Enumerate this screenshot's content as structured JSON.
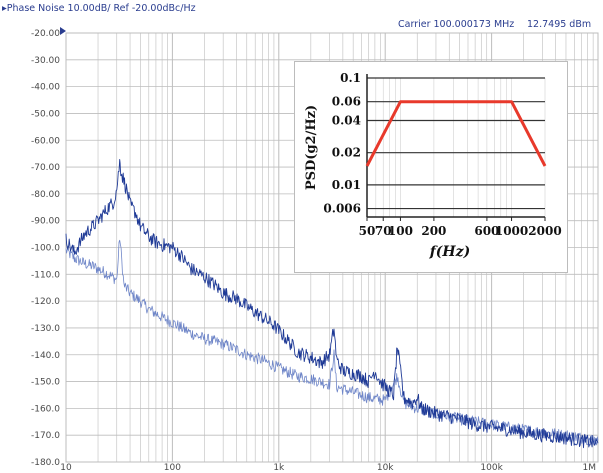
{
  "header": {
    "title": "▸Phase Noise 10.00dB/ Ref -20.00dBc/Hz",
    "carrier": "Carrier 100.000173 MHz",
    "power": "12.7495 dBm"
  },
  "colors": {
    "trace_dark": "#1f3a96",
    "trace_light": "#6f86c8",
    "grid": "#bdbdbd",
    "axis_text": "#4a4a4a",
    "inset_line": "#e8392b"
  },
  "chart_data": [
    {
      "type": "line",
      "title": "Phase Noise 10.00dB/ Ref -20.00dBc/Hz",
      "xscale": "log",
      "xlim": [
        10,
        1000000
      ],
      "ylim": [
        -180,
        -20
      ],
      "x_tick_values": [
        10,
        100,
        1000,
        10000,
        100000,
        1000000
      ],
      "x_tick_labels": [
        "10",
        "100",
        "1k",
        "10k",
        "100k",
        "1M"
      ],
      "y_tick_labels": [
        "-20.00",
        "-30.00",
        "-40.00",
        "-50.00",
        "-60.00",
        "-70.00",
        "-80.00",
        "-90.00",
        "-100.0",
        "-110.0",
        "-120.0",
        "-130.0",
        "-140.0",
        "-150.0",
        "-160.0",
        "-170.0",
        "-180.0"
      ],
      "grid": true,
      "series": [
        {
          "x": [
            10,
            12,
            15,
            18,
            20,
            25,
            28,
            30,
            32,
            33,
            35,
            38,
            40,
            45,
            50,
            60,
            70,
            80,
            100,
            120,
            150,
            200,
            250,
            300,
            400,
            500,
            700,
            900,
            1000,
            1300,
            1500,
            2000,
            2500,
            3000,
            3300,
            3500,
            4000,
            5000,
            6000,
            7000,
            8000,
            9000,
            10000,
            12000,
            13000,
            15000,
            18000,
            20000,
            22000,
            30000,
            40000,
            50000,
            70000,
            100000,
            150000,
            200000,
            300000,
            500000,
            700000,
            1000000
          ],
          "y": [
            -97,
            -102,
            -95,
            -92,
            -90,
            -85,
            -83,
            -78,
            -68,
            -72,
            -75,
            -80,
            -84,
            -87,
            -92,
            -96,
            -98,
            -99,
            -100,
            -103,
            -108,
            -111,
            -114,
            -117,
            -119,
            -122,
            -126,
            -129,
            -131,
            -136,
            -139,
            -141,
            -143,
            -140,
            -130,
            -142,
            -146,
            -147,
            -148,
            -150,
            -146,
            -150,
            -152,
            -155,
            -137,
            -156,
            -158,
            -156,
            -160,
            -162,
            -163,
            -164,
            -166,
            -167,
            -168,
            -169,
            -170,
            -171,
            -172,
            -173
          ]
        },
        {
          "x": [
            10,
            12,
            15,
            18,
            20,
            25,
            30,
            32,
            35,
            40,
            50,
            60,
            80,
            100,
            150,
            200,
            300,
            400,
            500,
            700,
            900,
            1000,
            1500,
            2000,
            3000,
            3300,
            3500,
            5000,
            7000,
            10000,
            13000,
            15000,
            20000,
            30000,
            50000,
            70000,
            100000,
            200000,
            500000,
            1000000
          ],
          "y": [
            -101,
            -104,
            -106,
            -107,
            -108,
            -110,
            -112,
            -96,
            -114,
            -117,
            -120,
            -123,
            -126,
            -128,
            -132,
            -134,
            -136,
            -138,
            -140,
            -142,
            -144,
            -145,
            -148,
            -149,
            -151,
            -140,
            -152,
            -154,
            -156,
            -157,
            -148,
            -158,
            -160,
            -162,
            -164,
            -165,
            -166,
            -168,
            -170,
            -172
          ]
        }
      ]
    },
    {
      "type": "line",
      "xscale": "log",
      "yscale": "log",
      "xlabel": "f(Hz)",
      "ylabel": "PSD(g2/Hz)",
      "xlim": [
        50,
        2000
      ],
      "ylim": [
        0.005,
        0.1
      ],
      "x_tick_labels": [
        "50",
        "70",
        "100",
        "200",
        "600",
        "1000",
        "2000"
      ],
      "y_tick_labels": [
        "0.1",
        "0.06",
        "0.04",
        "0.02",
        "0.01",
        "0.006"
      ],
      "grid": true,
      "series": [
        {
          "x": [
            50,
            100,
            1000,
            2000
          ],
          "y": [
            0.015,
            0.06,
            0.06,
            0.015
          ]
        }
      ]
    }
  ]
}
